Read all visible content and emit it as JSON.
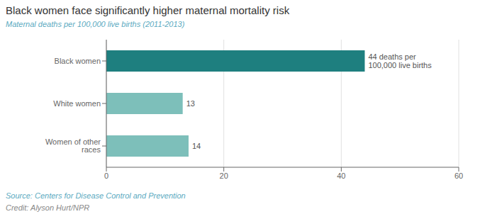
{
  "chart_data": {
    "type": "bar",
    "orientation": "horizontal",
    "title": "Black women face significantly higher maternal mortality risk",
    "subtitle": "Maternal deaths per 100,000 live births (2011-2013)",
    "categories": [
      "Women of other races",
      "White women",
      "Black women"
    ],
    "values": [
      14,
      13,
      44
    ],
    "colors": [
      "#7dbfba",
      "#7dbfba",
      "#1e7f7f"
    ],
    "data_labels": true,
    "value_labels": [
      "14",
      "13",
      "44 deaths per\n100,000 live births"
    ],
    "xlim": [
      0,
      60
    ],
    "xticks": [
      0,
      20,
      40,
      60
    ],
    "grid": true,
    "annotations": [
      "Source: Centers for Disease Control and Prevention",
      "Credit: Alyson Hurt/NPR"
    ]
  }
}
